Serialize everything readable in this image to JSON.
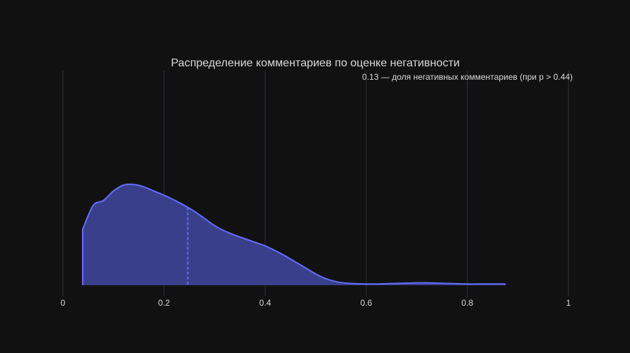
{
  "chart_data": {
    "type": "area",
    "title": "Распределение комментариев по оценке негативности",
    "annotation": "0.13 — доля негативных комментариев (при p > 0.44)",
    "xlabel": "",
    "ylabel": "",
    "xlim": [
      0,
      1
    ],
    "ylim": [
      0,
      3.6
    ],
    "grid": true,
    "x_ticks": [
      0,
      0.2,
      0.4,
      0.6,
      0.8,
      1
    ],
    "x_tick_labels": [
      "0",
      "0.2",
      "0.4",
      "0.6",
      "0.8",
      "1"
    ],
    "series": [
      {
        "x": [
          0.039,
          0.06,
          0.08,
          0.1,
          0.12,
          0.14,
          0.16,
          0.18,
          0.2,
          0.22,
          0.24,
          0.26,
          0.28,
          0.3,
          0.32,
          0.34,
          0.36,
          0.38,
          0.4,
          0.42,
          0.44,
          0.46,
          0.48,
          0.5,
          0.52,
          0.54,
          0.56,
          0.58,
          0.6,
          0.62,
          0.64,
          0.66,
          0.68,
          0.7,
          0.72,
          0.74,
          0.76,
          0.78,
          0.8,
          0.82,
          0.84,
          0.86,
          0.874
        ],
        "y": [
          0.94,
          1.34,
          1.42,
          1.58,
          1.68,
          1.69,
          1.65,
          1.58,
          1.51,
          1.43,
          1.34,
          1.24,
          1.12,
          1.0,
          0.91,
          0.84,
          0.78,
          0.72,
          0.66,
          0.58,
          0.49,
          0.39,
          0.29,
          0.19,
          0.11,
          0.06,
          0.035,
          0.025,
          0.02,
          0.02,
          0.025,
          0.03,
          0.035,
          0.04,
          0.04,
          0.035,
          0.03,
          0.025,
          0.02,
          0.02,
          0.02,
          0.02,
          0.02
        ],
        "median": 0.247
      }
    ],
    "colors": {
      "background": "#111111",
      "line": "#636efa",
      "fill": "#3a3f8c",
      "grid": "#2d2d3a",
      "text": "#d9d9d9"
    }
  }
}
